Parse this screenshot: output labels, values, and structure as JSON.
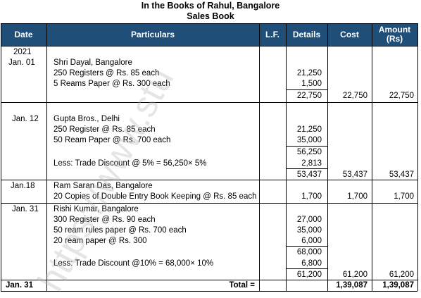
{
  "title": "In the Books of Rahul, Bangalore",
  "subtitle": "Sales Book",
  "headers": {
    "date": "Date",
    "particulars": "Particulars",
    "lf": "L.F.",
    "details": "Details",
    "cost": "Cost",
    "amount": "Amount (Rs)"
  },
  "entries": [
    {
      "date_lines": [
        "2021",
        "Jan. 01"
      ],
      "particulars": [
        "Shri Dayal, Bangalore",
        "250 Registers @ Rs. 85 each",
        "5 Reams Paper @ Rs. 300 each"
      ],
      "details": [
        "21,250",
        "1,500"
      ],
      "subtotal": "22,750",
      "cost": "22,750",
      "amount": "22,750"
    },
    {
      "date_lines": [
        "Jan. 12"
      ],
      "particulars": [
        "Gupta Bros., Delhi",
        "250 Register @ Rs. 85 each",
        "50 Ream Paper @ Rs. 700 each",
        "Less: Trade Discount @ 5% = 56,250× 5%"
      ],
      "details": [
        "21,250",
        "35,000",
        "56,250",
        "2,813"
      ],
      "subtotal": "53,437",
      "cost": "53,437",
      "amount": "53,437"
    },
    {
      "date_lines": [
        "Jan.18"
      ],
      "particulars": [
        "Ram Saran Das, Bangalore",
        "20 Copies of Double Entry Book Keeping @ Rs. 85 each"
      ],
      "details": [
        "1,700"
      ],
      "cost": "1,700",
      "amount": "1,700"
    },
    {
      "date_lines": [
        "Jan. 31"
      ],
      "particulars": [
        "Rishi Kumar, Bangalore",
        "300 Register @ Rs. 90 each",
        "50 ream rules paper @ Rs. 700 each",
        "20 ream paper @ Rs. 300",
        "Less: Trade Discount @10% = 68,000× 10%"
      ],
      "details": [
        "27,000",
        "35,000",
        "6,000",
        "68,000",
        "6,800"
      ],
      "subtotal": "61,200",
      "cost": "61,200",
      "amount": "61,200"
    }
  ],
  "total": {
    "date": "Jan. 31",
    "label": "Total =",
    "cost": "1,39,087",
    "amount": "1,39,087"
  },
  "watermark": "https://www.stu"
}
